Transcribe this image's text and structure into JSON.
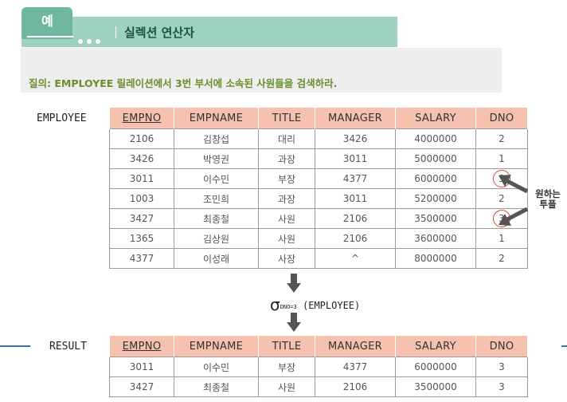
{
  "header": {
    "example_label": "예",
    "title": "실렉션 연산자"
  },
  "query": "질의: EMPLOYEE 릴레이션에서 3번 부서에 소속된 사원들을 검색하라.",
  "employee": {
    "label": "EMPLOYEE",
    "columns": [
      "EMPNO",
      "EMPNAME",
      "TITLE",
      "MANAGER",
      "SALARY",
      "DNO"
    ],
    "rows": [
      [
        "2106",
        "김창섭",
        "대리",
        "3426",
        "4000000",
        "2"
      ],
      [
        "3426",
        "박영권",
        "과장",
        "3011",
        "5000000",
        "1"
      ],
      [
        "3011",
        "이수민",
        "부장",
        "4377",
        "6000000",
        "3"
      ],
      [
        "1003",
        "조민희",
        "과장",
        "3011",
        "5200000",
        "2"
      ],
      [
        "3427",
        "최종철",
        "사원",
        "2106",
        "3500000",
        "3"
      ],
      [
        "1365",
        "김상원",
        "사원",
        "2106",
        "3600000",
        "1"
      ],
      [
        "4377",
        "이성래",
        "사장",
        "^",
        "8000000",
        "2"
      ]
    ]
  },
  "note": {
    "line1": "원하는",
    "line2": "투플"
  },
  "operation": {
    "symbol": "σ",
    "condition": "DNO=3",
    "operand": "(EMPLOYEE)"
  },
  "result": {
    "label": "RESULT",
    "columns": [
      "EMPNO",
      "EMPNAME",
      "TITLE",
      "MANAGER",
      "SALARY",
      "DNO"
    ],
    "rows": [
      [
        "3011",
        "이수민",
        "부장",
        "4377",
        "6000000",
        "3"
      ],
      [
        "3427",
        "최종철",
        "사원",
        "2106",
        "3500000",
        "3"
      ]
    ]
  },
  "colors": {
    "header_teal": "#6fb7a0",
    "header_light": "#9fd1c0",
    "table_header": "#f6c1ae",
    "query_text": "#6a8f2c",
    "circle": "#d9433a",
    "arrow": "#555555",
    "rule": "#3a6fb0"
  }
}
